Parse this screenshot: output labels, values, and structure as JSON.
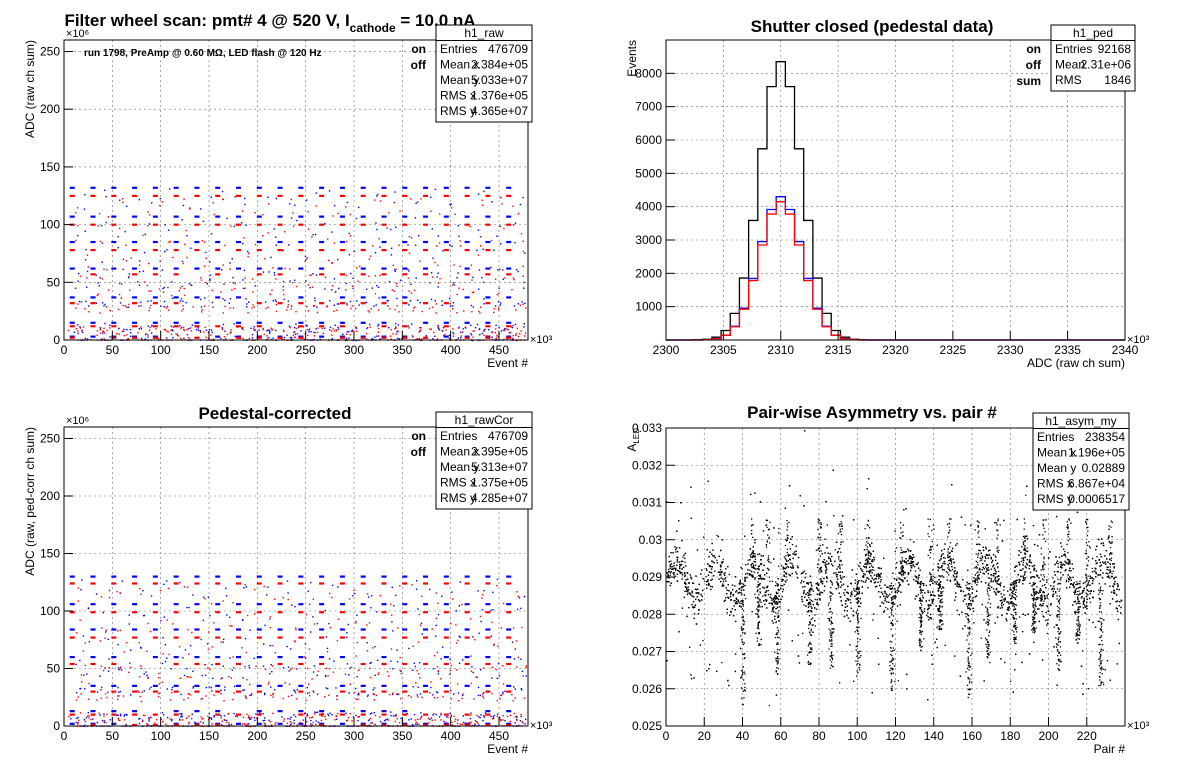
{
  "chart_data": [
    {
      "type": "scatter",
      "title": "Filter wheel scan: pmt#   4 @   520 V, I",
      "title_sub": "cathode",
      "title_tail": " = 10.0 nA",
      "note": "run 1798, PreAmp @ 0.60 MΩ, LED flash @  120 Hz",
      "xlabel": "Event #",
      "ylabel": "ADC (raw ch sum)",
      "x_multiplier": "×10³",
      "y_multiplier": "×10⁶",
      "xlim": [
        0,
        480
      ],
      "ylim": [
        0,
        260
      ],
      "x_ticks": [
        0,
        50,
        100,
        150,
        200,
        250,
        300,
        350,
        400,
        450
      ],
      "y_ticks": [
        0,
        50,
        100,
        150,
        200,
        250
      ],
      "grid": true,
      "legend": [
        {
          "name": "on",
          "color": "#0000ff"
        },
        {
          "name": "off",
          "color": "#ff0000"
        }
      ],
      "stats_box": {
        "name": "h1_raw",
        "rows": [
          {
            "label": "Entries",
            "value": "476709"
          },
          {
            "label": "Mean x",
            "value": "2.384e+05"
          },
          {
            "label": "Mean y",
            "value": "5.033e+07"
          },
          {
            "label": "RMS x",
            "value": "1.376e+05"
          },
          {
            "label": "RMS y",
            "value": "4.365e+07"
          }
        ]
      },
      "series": [
        {
          "name": "on",
          "color": "#0000ff",
          "levels": [
            132,
            107,
            85,
            62,
            37,
            15,
            3
          ]
        },
        {
          "name": "off",
          "color": "#ff0000",
          "levels": [
            125,
            100,
            78,
            57,
            32,
            12,
            2
          ]
        }
      ]
    },
    {
      "type": "line",
      "title": "Shutter closed (pedestal data)",
      "xlabel": "ADC (raw ch sum)",
      "ylabel": "Events",
      "x_multiplier": "×10³",
      "xlim": [
        2300,
        2340
      ],
      "ylim": [
        0,
        9000
      ],
      "x_ticks": [
        2300,
        2305,
        2310,
        2315,
        2320,
        2325,
        2330,
        2335,
        2340
      ],
      "y_ticks": [
        1000,
        2000,
        3000,
        4000,
        5000,
        6000,
        7000,
        8000
      ],
      "grid": true,
      "legend": [
        {
          "name": "on",
          "color": "#0000ff"
        },
        {
          "name": "off",
          "color": "#ff0000"
        },
        {
          "name": "sum",
          "color": "#000000"
        }
      ],
      "stats_box": {
        "name": "h1_ped",
        "rows": [
          {
            "label": "Entries",
            "value": "92168"
          },
          {
            "label": "Mean",
            "value": "2.31e+06"
          },
          {
            "label": "RMS",
            "value": "1846"
          }
        ]
      },
      "series": [
        {
          "name": "sum",
          "color": "#000000",
          "mean": 2310,
          "sigma": 1.846,
          "peak": 8350
        },
        {
          "name": "on",
          "color": "#0000ff",
          "mean": 2310,
          "sigma": 1.846,
          "peak": 4300
        },
        {
          "name": "off",
          "color": "#ff0000",
          "mean": 2310,
          "sigma": 1.846,
          "peak": 4150
        }
      ]
    },
    {
      "type": "scatter",
      "title": "Pedestal-corrected",
      "xlabel": "Event #",
      "ylabel": "ADC (raw, ped-corr ch sum)",
      "x_multiplier": "×10³",
      "y_multiplier": "×10⁶",
      "xlim": [
        0,
        480
      ],
      "ylim": [
        0,
        260
      ],
      "x_ticks": [
        0,
        50,
        100,
        150,
        200,
        250,
        300,
        350,
        400,
        450
      ],
      "y_ticks": [
        0,
        50,
        100,
        150,
        200,
        250
      ],
      "grid": true,
      "legend": [
        {
          "name": "on",
          "color": "#0000ff"
        },
        {
          "name": "off",
          "color": "#ff0000"
        }
      ],
      "stats_box": {
        "name": "h1_rawCor",
        "rows": [
          {
            "label": "Entries",
            "value": "476709"
          },
          {
            "label": "Mean x",
            "value": "2.395e+05"
          },
          {
            "label": "Mean y",
            "value": "5.313e+07"
          },
          {
            "label": "RMS x",
            "value": "1.375e+05"
          },
          {
            "label": "RMS y",
            "value": "4.285e+07"
          }
        ]
      },
      "series": [
        {
          "name": "on",
          "color": "#0000ff",
          "levels": [
            130,
            106,
            84,
            60,
            35,
            13,
            2
          ]
        },
        {
          "name": "off",
          "color": "#ff0000",
          "levels": [
            124,
            99,
            77,
            54,
            30,
            10,
            1
          ]
        }
      ]
    },
    {
      "type": "scatter",
      "title": "Pair-wise Asymmetry vs. pair #",
      "xlabel": "Pair #",
      "ylabel": "A",
      "ylabel_sub": "LED",
      "x_multiplier": "×10³",
      "xlim": [
        0,
        240
      ],
      "ylim": [
        0.025,
        0.033
      ],
      "x_ticks": [
        0,
        20,
        40,
        60,
        80,
        100,
        120,
        140,
        160,
        180,
        200,
        220
      ],
      "y_ticks": [
        0.025,
        0.026,
        0.027,
        0.028,
        0.029,
        0.03,
        0.031,
        0.032,
        0.033
      ],
      "y_tick_labels": [
        "0.025",
        "0.026",
        "0.027",
        "0.028",
        "0.029",
        "0.03",
        "0.031",
        "0.032",
        "0.033"
      ],
      "grid": true,
      "stats_box": {
        "name": "h1_asym_my",
        "rows": [
          {
            "label": "Entries",
            "value": "238354"
          },
          {
            "label": "Mean x",
            "value": "1.196e+05"
          },
          {
            "label": "Mean y",
            "value": "0.02889"
          },
          {
            "label": "RMS x",
            "value": "6.867e+04"
          },
          {
            "label": "RMS y",
            "value": "0.0006517"
          }
        ]
      },
      "series": [
        {
          "name": "",
          "color": "#000000",
          "center": 0.02889,
          "spread": 0.0006517
        }
      ]
    }
  ]
}
